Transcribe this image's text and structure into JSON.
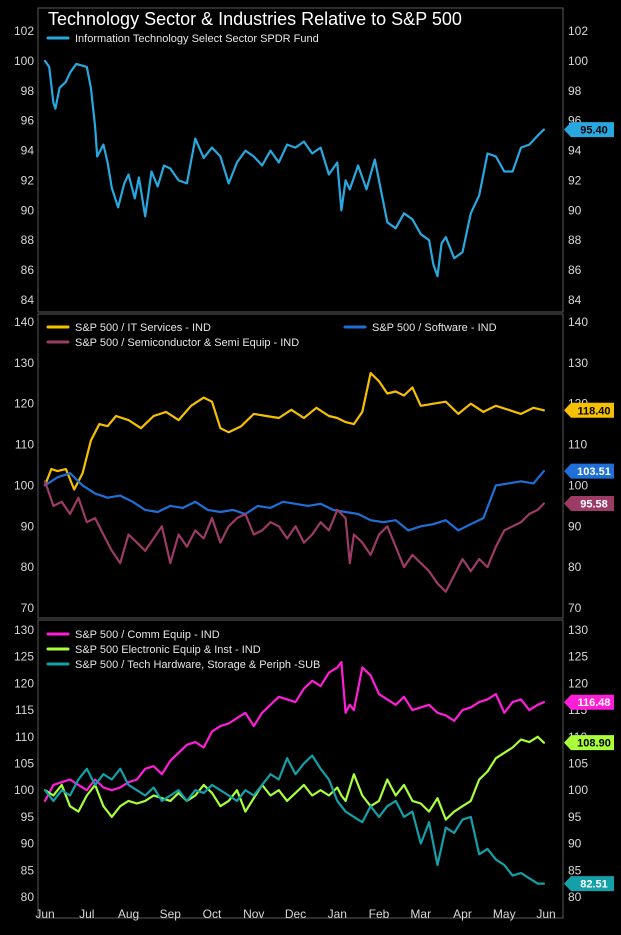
{
  "title": "Technology Sector & Industries Relative to S&P 500",
  "chart_data": [
    {
      "type": "line",
      "panel": "top",
      "ylim": [
        84,
        102
      ],
      "yticks": [
        84,
        86,
        88,
        90,
        92,
        94,
        96,
        98,
        100,
        102
      ],
      "grid": false,
      "legend_placement": "top-left",
      "x_months": [
        "Jun",
        "Jul",
        "Aug",
        "Sep",
        "Oct",
        "Nov",
        "Dec",
        "Jan",
        "Feb",
        "Mar",
        "Apr",
        "May",
        "Jun"
      ],
      "series": [
        {
          "name": "Information Technology Select Sector SPDR Fund",
          "color": "#29a8e0",
          "last_label": "95.40",
          "x": [
            0,
            0.1,
            0.2,
            0.25,
            0.35,
            0.5,
            0.6,
            0.75,
            1.0,
            1.1,
            1.2,
            1.25,
            1.4,
            1.5,
            1.6,
            1.75,
            1.9,
            2.0,
            2.15,
            2.25,
            2.4,
            2.55,
            2.7,
            2.85,
            3.0,
            3.2,
            3.4,
            3.6,
            3.8,
            4.0,
            4.2,
            4.4,
            4.6,
            4.8,
            5.0,
            5.2,
            5.4,
            5.6,
            5.8,
            6.0,
            6.2,
            6.4,
            6.6,
            6.8,
            7.0,
            7.1,
            7.2,
            7.3,
            7.5,
            7.7,
            7.9,
            8.0,
            8.2,
            8.4,
            8.6,
            8.8,
            9.0,
            9.2,
            9.3,
            9.4,
            9.5,
            9.6,
            9.8,
            10.0,
            10.2,
            10.4,
            10.6,
            10.8,
            11.0,
            11.2,
            11.4,
            11.6,
            11.8,
            11.95
          ],
          "values": [
            100,
            99.6,
            97.2,
            96.8,
            98.2,
            98.6,
            99.2,
            99.8,
            99.6,
            98.2,
            95.6,
            93.6,
            94.4,
            93.2,
            91.5,
            90.2,
            91.8,
            92.4,
            90.8,
            92.2,
            89.6,
            92.6,
            91.6,
            93.0,
            92.8,
            92.0,
            91.8,
            94.8,
            93.5,
            94.2,
            93.6,
            91.8,
            93.2,
            94.0,
            93.6,
            93.0,
            94.0,
            93.2,
            94.4,
            94.2,
            94.6,
            93.8,
            94.2,
            92.4,
            93.2,
            90.0,
            92.0,
            91.4,
            93.0,
            91.4,
            93.4,
            92.0,
            89.2,
            88.8,
            89.8,
            89.4,
            88.4,
            88.0,
            86.4,
            85.6,
            87.8,
            88.2,
            86.8,
            87.2,
            89.8,
            91.0,
            93.8,
            93.6,
            92.6,
            92.6,
            94.2,
            94.4,
            95.0,
            95.4
          ]
        }
      ]
    },
    {
      "type": "line",
      "panel": "middle",
      "ylim": [
        70,
        140
      ],
      "yticks": [
        70,
        80,
        90,
        100,
        110,
        120,
        130,
        140
      ],
      "grid": false,
      "legend_placement": "top-left",
      "x_months": [
        "Jun",
        "Jul",
        "Aug",
        "Sep",
        "Oct",
        "Nov",
        "Dec",
        "Jan",
        "Feb",
        "Mar",
        "Apr",
        "May",
        "Jun"
      ],
      "series": [
        {
          "name": "S&P 500 / IT Services - IND",
          "color": "#f5c000",
          "last_label": "118.40",
          "x": [
            0,
            0.15,
            0.3,
            0.5,
            0.7,
            0.9,
            1.1,
            1.3,
            1.5,
            1.7,
            2.0,
            2.3,
            2.6,
            2.9,
            3.2,
            3.5,
            3.8,
            4.0,
            4.2,
            4.4,
            4.7,
            5.0,
            5.3,
            5.6,
            5.9,
            6.2,
            6.5,
            6.8,
            7.0,
            7.2,
            7.4,
            7.6,
            7.8,
            8.0,
            8.2,
            8.4,
            8.6,
            8.8,
            9.0,
            9.3,
            9.6,
            9.9,
            10.2,
            10.5,
            10.8,
            11.1,
            11.4,
            11.7,
            11.95
          ],
          "values": [
            100,
            104,
            103.5,
            104,
            99,
            103,
            111,
            115,
            114.5,
            117,
            116,
            114,
            117,
            118,
            116,
            119.5,
            121.5,
            120.5,
            114,
            113,
            114.5,
            117.5,
            117,
            116.5,
            118.5,
            116.5,
            119,
            117,
            116.5,
            115.5,
            115,
            118,
            127.5,
            125.5,
            122.5,
            123,
            122,
            124,
            119.5,
            120,
            120.5,
            117.5,
            120,
            118,
            119.5,
            118.5,
            117.5,
            119,
            118.4
          ]
        },
        {
          "name": "S&P 500 / Software - IND",
          "color": "#1f6fd6",
          "last_label": "103.51",
          "x": [
            0,
            0.3,
            0.6,
            0.9,
            1.2,
            1.5,
            1.8,
            2.1,
            2.4,
            2.7,
            3.0,
            3.3,
            3.6,
            3.9,
            4.2,
            4.5,
            4.8,
            5.1,
            5.4,
            5.7,
            6.0,
            6.3,
            6.6,
            6.9,
            7.2,
            7.5,
            7.8,
            8.1,
            8.4,
            8.7,
            9.0,
            9.3,
            9.6,
            9.9,
            10.2,
            10.5,
            10.8,
            11.1,
            11.4,
            11.7,
            11.95
          ],
          "values": [
            100,
            102,
            103,
            100,
            98,
            97,
            97.5,
            96,
            94,
            93.5,
            95,
            94.5,
            96,
            94,
            93.5,
            94,
            93,
            95,
            94.5,
            96,
            95.5,
            95,
            95.5,
            94,
            93.5,
            93,
            91.5,
            91,
            91.5,
            89,
            90,
            90.5,
            91.5,
            89,
            90.5,
            92,
            100,
            100.5,
            101,
            100.5,
            103.51
          ]
        },
        {
          "name": "S&P 500 / Semiconductor & Semi Equip - IND",
          "color": "#9c3b66",
          "last_label": "95.58",
          "x": [
            0,
            0.2,
            0.4,
            0.6,
            0.8,
            1.0,
            1.2,
            1.4,
            1.6,
            1.8,
            2.0,
            2.2,
            2.4,
            2.6,
            2.8,
            3.0,
            3.2,
            3.4,
            3.6,
            3.8,
            4.0,
            4.2,
            4.4,
            4.6,
            4.8,
            5.0,
            5.2,
            5.4,
            5.6,
            5.8,
            6.0,
            6.2,
            6.4,
            6.6,
            6.8,
            7.0,
            7.2,
            7.3,
            7.4,
            7.6,
            7.8,
            8.0,
            8.2,
            8.4,
            8.6,
            8.8,
            9.0,
            9.2,
            9.4,
            9.6,
            9.8,
            10.0,
            10.2,
            10.4,
            10.6,
            10.8,
            11.0,
            11.2,
            11.4,
            11.6,
            11.8,
            11.95
          ],
          "values": [
            101,
            95,
            96,
            93,
            97,
            91,
            92,
            88,
            84,
            81,
            88,
            86,
            84,
            87,
            90,
            81,
            88,
            85,
            89,
            87,
            92,
            86,
            90,
            92,
            93,
            88,
            89,
            91,
            90,
            87,
            90,
            86,
            88,
            91,
            89,
            94,
            92,
            81,
            88,
            86,
            83,
            88,
            90,
            85,
            80,
            83,
            81,
            79,
            76,
            74,
            78,
            82,
            79,
            82,
            80,
            85,
            89,
            90,
            91,
            93,
            94,
            95.58
          ]
        }
      ]
    },
    {
      "type": "line",
      "panel": "bottom",
      "ylim": [
        80,
        130
      ],
      "yticks": [
        80,
        85,
        90,
        95,
        100,
        105,
        110,
        115,
        120,
        125,
        130
      ],
      "grid": false,
      "legend_placement": "top-left",
      "x_months": [
        "Jun",
        "Jul",
        "Aug",
        "Sep",
        "Oct",
        "Nov",
        "Dec",
        "Jan",
        "Feb",
        "Mar",
        "Apr",
        "May",
        "Jun"
      ],
      "series": [
        {
          "name": "S&P 500 / Comm Equip - IND",
          "color": "#ff1ed8",
          "last_label": "116.48",
          "x": [
            0,
            0.2,
            0.4,
            0.6,
            0.8,
            1.0,
            1.2,
            1.4,
            1.6,
            1.8,
            2.0,
            2.2,
            2.4,
            2.6,
            2.8,
            3.0,
            3.2,
            3.4,
            3.6,
            3.8,
            4.0,
            4.2,
            4.4,
            4.6,
            4.8,
            5.0,
            5.2,
            5.4,
            5.6,
            5.8,
            6.0,
            6.2,
            6.4,
            6.6,
            6.8,
            7.0,
            7.1,
            7.2,
            7.3,
            7.4,
            7.6,
            7.8,
            8.0,
            8.2,
            8.4,
            8.6,
            8.8,
            9.0,
            9.2,
            9.4,
            9.6,
            9.8,
            10.0,
            10.2,
            10.4,
            10.6,
            10.8,
            11.0,
            11.2,
            11.4,
            11.6,
            11.8,
            11.95
          ],
          "values": [
            98,
            101,
            101.5,
            102,
            101,
            100,
            102,
            100.5,
            100,
            100.5,
            101.5,
            102,
            104,
            104.5,
            103,
            105.5,
            107,
            108.5,
            109,
            108,
            111,
            112,
            112.5,
            113.5,
            114.5,
            112,
            114.5,
            116,
            117.5,
            117,
            116.5,
            119,
            120.5,
            119.5,
            122,
            123,
            124,
            114.5,
            116,
            115,
            123,
            121.5,
            118,
            117,
            116,
            117.5,
            115,
            115.5,
            116,
            114.5,
            114,
            113,
            115,
            115.5,
            116.5,
            117,
            118,
            114.5,
            116.5,
            117,
            115,
            116,
            116.48
          ]
        },
        {
          "name": "S&P 500 Electronic Equip & Inst - IND",
          "color": "#a8ff3a",
          "last_label": "108.90",
          "x": [
            0,
            0.2,
            0.4,
            0.6,
            0.8,
            1.0,
            1.2,
            1.4,
            1.6,
            1.8,
            2.0,
            2.2,
            2.4,
            2.6,
            2.8,
            3.0,
            3.2,
            3.4,
            3.6,
            3.8,
            4.0,
            4.2,
            4.4,
            4.6,
            4.8,
            5.0,
            5.2,
            5.4,
            5.6,
            5.8,
            6.0,
            6.2,
            6.4,
            6.6,
            6.8,
            7.0,
            7.1,
            7.2,
            7.4,
            7.6,
            7.8,
            8.0,
            8.2,
            8.4,
            8.6,
            8.8,
            9.0,
            9.2,
            9.4,
            9.6,
            9.8,
            10.0,
            10.2,
            10.4,
            10.6,
            10.8,
            11.0,
            11.2,
            11.4,
            11.6,
            11.8,
            11.95
          ],
          "values": [
            100,
            99,
            101,
            97,
            96,
            99,
            101,
            97,
            95,
            97,
            98,
            97.5,
            98,
            99,
            98.5,
            98,
            99.5,
            98,
            99,
            101,
            99.5,
            97,
            98,
            100,
            96,
            98.5,
            101,
            99,
            100,
            98,
            99.5,
            101,
            99,
            100,
            99,
            100.5,
            99,
            98,
            103,
            99,
            97,
            98,
            102,
            99,
            101,
            98,
            97.5,
            96,
            98.5,
            94.5,
            96,
            97,
            98,
            102,
            103.5,
            106,
            107,
            108,
            109.5,
            109,
            110,
            108.9
          ]
        },
        {
          "name": "S&P 500 / Tech Hardware, Storage & Periph -SUB",
          "color": "#14a0a8",
          "last_label": "82.51",
          "x": [
            0,
            0.2,
            0.4,
            0.6,
            0.8,
            1.0,
            1.2,
            1.4,
            1.6,
            1.8,
            2.0,
            2.2,
            2.4,
            2.6,
            2.8,
            3.0,
            3.2,
            3.4,
            3.6,
            3.8,
            4.0,
            4.2,
            4.4,
            4.6,
            4.8,
            5.0,
            5.2,
            5.4,
            5.6,
            5.8,
            6.0,
            6.2,
            6.4,
            6.6,
            6.8,
            7.0,
            7.2,
            7.4,
            7.6,
            7.8,
            8.0,
            8.2,
            8.4,
            8.6,
            8.8,
            9.0,
            9.2,
            9.4,
            9.6,
            9.8,
            10.0,
            10.2,
            10.4,
            10.6,
            10.8,
            11.0,
            11.2,
            11.4,
            11.6,
            11.8,
            11.95
          ],
          "values": [
            100,
            98,
            100,
            99,
            102,
            104,
            101,
            103,
            102,
            104,
            101,
            100,
            99,
            100.5,
            98,
            99,
            100,
            98,
            100,
            99.5,
            101,
            100,
            99,
            98,
            100,
            99,
            101,
            103,
            102,
            106,
            103,
            105,
            106.5,
            104,
            102,
            98,
            96,
            95,
            94,
            97,
            95,
            97,
            98,
            95,
            96,
            90,
            94,
            86,
            93,
            92,
            94.5,
            95,
            88,
            89,
            87,
            86,
            84,
            84.5,
            83.5,
            82.5,
            82.51
          ]
        }
      ]
    }
  ]
}
